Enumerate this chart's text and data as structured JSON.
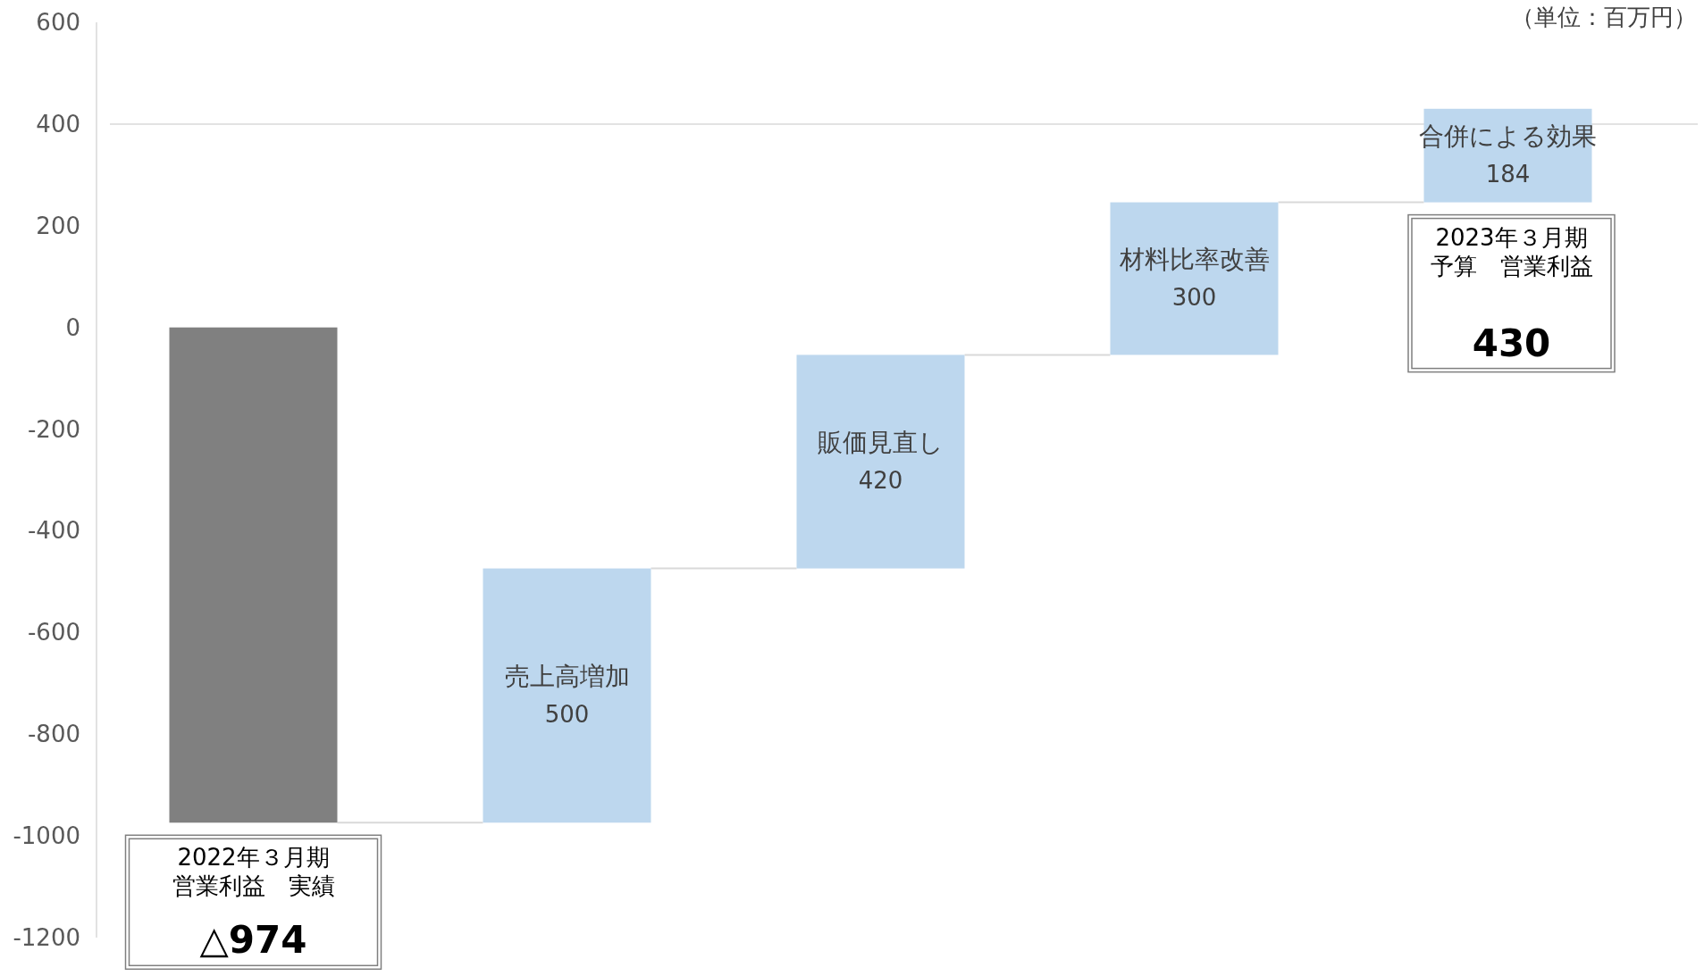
{
  "chart_data": {
    "type": "bar",
    "categories": [
      null,
      "売上高増加",
      "販価見直し",
      "材料比率改善",
      "合併による効果"
    ],
    "values": [
      -974,
      500,
      420,
      300,
      184
    ],
    "base": [
      0,
      -974,
      -474,
      -54,
      246
    ],
    "colors": [
      "#808080",
      "#bdd7ee",
      "#bdd7ee",
      "#bdd7ee",
      "#bdd7ee"
    ],
    "value_labels": [
      null,
      "500",
      "420",
      "300",
      "184"
    ],
    "ylim": [
      -1200,
      600
    ],
    "yticks": [
      -1200,
      -1000,
      -800,
      -600,
      -400,
      -200,
      0,
      200,
      400,
      600
    ],
    "ref_lines": [
      {
        "axis": "y",
        "value": 400,
        "color": "#d9d9d9"
      }
    ],
    "grid": false,
    "annotations": [
      "（単位：百万円）",
      {
        "text": "2022年３月期",
        "y": -974
      },
      {
        "text": "営業利益　実績",
        "y": -974
      },
      {
        "text": "△974",
        "y": -974
      },
      "2023年３月期",
      "予算　営業利益",
      "430"
    ]
  }
}
